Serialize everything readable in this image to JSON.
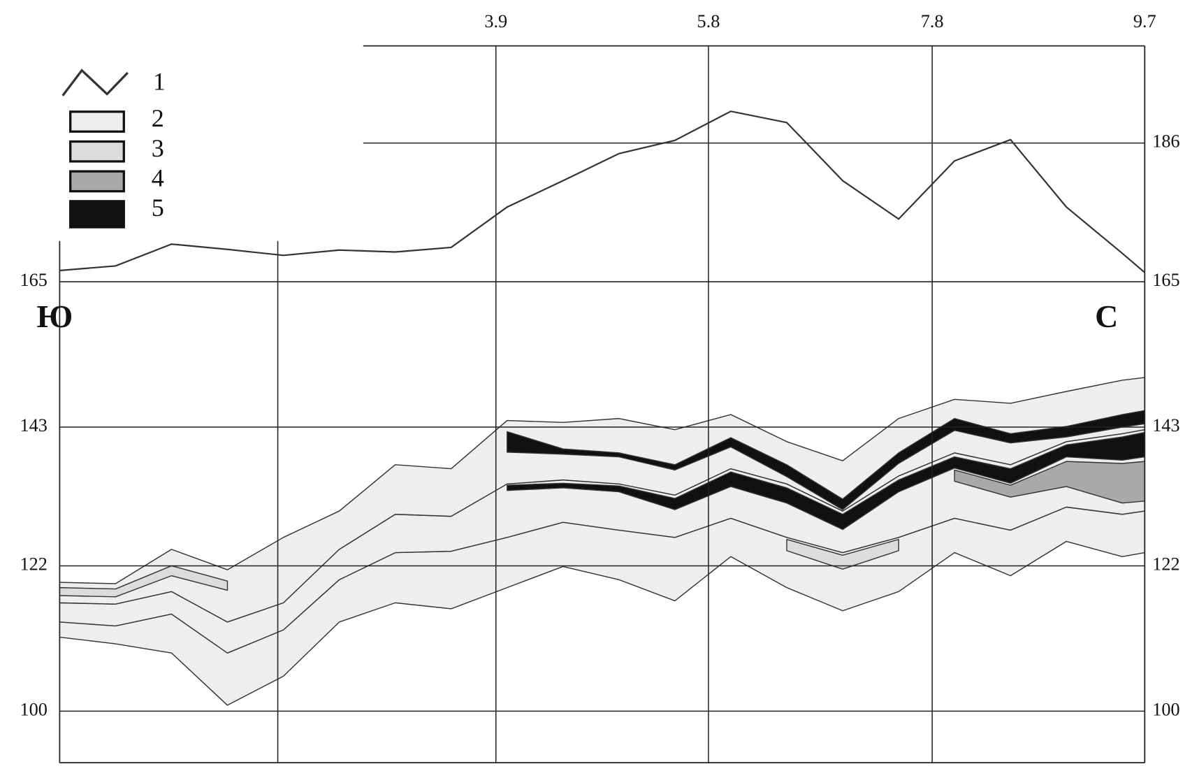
{
  "chart_data": {
    "type": "profile-section",
    "annotations": {
      "left": "Ю",
      "right": "С"
    },
    "x": [
      0,
      0.5,
      1,
      1.5,
      2,
      2.5,
      3,
      3.5,
      4,
      4.5,
      5,
      5.5,
      6,
      6.5,
      7,
      7.5,
      8,
      8.5,
      9,
      9.5,
      9.7
    ],
    "xlim": [
      0,
      9.7
    ],
    "xticks": [
      3.9,
      5.8,
      7.8,
      9.7
    ],
    "xgrid": [
      1.95,
      3.9,
      5.8,
      7.8,
      9.7
    ],
    "ylim": [
      92.2,
      200.7
    ],
    "yticks": [
      100,
      122,
      143,
      165,
      186
    ],
    "grid": true,
    "legend": "top-left",
    "series": [
      {
        "name": "1",
        "color": "#333333",
        "values": [
          166.7,
          167.4,
          170.7,
          169.9,
          169,
          169.8,
          169.5,
          170.2,
          176.3,
          180.3,
          184.4,
          186.4,
          190.8,
          189.1,
          180.3,
          174.5,
          183.3,
          186.5,
          176.3,
          169.3,
          166.4
        ]
      }
    ],
    "layers": [
      {
        "name": "2",
        "color": "#eeeeee"
      },
      {
        "name": "3",
        "color": "#dcdcdc"
      },
      {
        "name": "4",
        "color": "#a9a9a9"
      },
      {
        "name": "5",
        "color": "#111111"
      }
    ],
    "bands": [
      {
        "layer": "2",
        "high": [
          113.5,
          112.9,
          114.7,
          108.8,
          112.3,
          119.9,
          124,
          124.2,
          126.3,
          128.6,
          127.4,
          126.3,
          129.2,
          126.3,
          124,
          126.3,
          129.2,
          127.4,
          130.9,
          129.8,
          130.3
        ],
        "low": [
          111.2,
          110.2,
          108.8,
          100.9,
          105.3,
          113.5,
          116.4,
          115.5,
          118.7,
          121.9,
          119.9,
          116.7,
          123.4,
          118.7,
          115.2,
          118.1,
          124,
          120.5,
          125.7,
          123.4,
          124
        ]
      },
      {
        "layer": "2",
        "high": [
          116.4,
          116.2,
          118.1,
          113.5,
          116.4,
          124.5,
          129.8,
          129.5,
          134.4,
          135,
          134.4,
          132.7,
          136.7,
          134.4,
          130.3,
          135.6,
          139.1,
          137.3,
          140.8,
          142,
          142.6
        ],
        "low": [
          113.5,
          112.9,
          114.7,
          108.8,
          112.3,
          119.9,
          124,
          124.2,
          126.3,
          128.6,
          127.4,
          126.3,
          129.2,
          126.3,
          124,
          126.3,
          129.2,
          127.4,
          130.9,
          129.8,
          130.3
        ]
      },
      {
        "layer": "2",
        "high": [
          119.5,
          119.3,
          124.5,
          121.4,
          126.3,
          130.3,
          137.3,
          136.7,
          144,
          143.7,
          144.3,
          142.6,
          144.9,
          140.8,
          137.9,
          144.3,
          147.2,
          146.6,
          148.4,
          150.1,
          150.5
        ],
        "low": [
          116.4,
          116.2,
          118.1,
          113.5,
          116.4,
          124.5,
          129.8,
          129.5,
          134.4,
          135,
          134.4,
          132.7,
          136.7,
          134.4,
          130.3,
          135.6,
          139.1,
          137.3,
          140.8,
          142,
          142.6
        ]
      },
      {
        "layer": "3",
        "high": [
          118.7,
          118.5,
          122,
          119.7,
          null,
          null,
          null,
          null,
          null,
          null,
          null,
          null,
          null,
          null,
          null,
          null,
          null,
          null,
          null,
          null,
          null
        ],
        "low": [
          117.5,
          117.3,
          120.5,
          118.3,
          null,
          null,
          null,
          null,
          null,
          null,
          null,
          null,
          null,
          null,
          null,
          null,
          null,
          null,
          null,
          null,
          null
        ]
      },
      {
        "layer": "3",
        "high": [
          null,
          null,
          null,
          null,
          null,
          null,
          null,
          null,
          null,
          null,
          null,
          null,
          null,
          126,
          123.6,
          126,
          null,
          null,
          null,
          null,
          null
        ],
        "low": [
          null,
          null,
          null,
          null,
          null,
          null,
          null,
          null,
          null,
          null,
          null,
          null,
          null,
          124.3,
          121.5,
          124.3,
          null,
          null,
          null,
          null,
          null
        ]
      },
      {
        "layer": "4",
        "high": [
          null,
          null,
          null,
          null,
          null,
          null,
          null,
          null,
          null,
          null,
          null,
          null,
          null,
          null,
          null,
          null,
          136.5,
          134.2,
          137.8,
          137.5,
          137.8
        ],
        "low": [
          null,
          null,
          null,
          null,
          null,
          null,
          null,
          null,
          null,
          null,
          null,
          null,
          null,
          null,
          null,
          null,
          134.8,
          132.4,
          134,
          131.5,
          131.8
        ]
      },
      {
        "layer": "5",
        "high": [
          null,
          null,
          null,
          null,
          null,
          null,
          null,
          null,
          142.3,
          139.7,
          139.1,
          137.3,
          141.4,
          137.3,
          132.1,
          139.1,
          144.3,
          142,
          143.1,
          144.9,
          145.5
        ],
        "low": [
          null,
          null,
          null,
          null,
          null,
          null,
          null,
          null,
          139.2,
          138.9,
          138.5,
          136.5,
          140,
          135.5,
          130.5,
          137.5,
          142.5,
          140.6,
          141.5,
          143,
          143.5
        ]
      },
      {
        "layer": "5",
        "high": [
          null,
          null,
          null,
          null,
          null,
          null,
          null,
          null,
          134.2,
          134.5,
          134.1,
          132.2,
          136.2,
          133.8,
          129.8,
          135,
          138.5,
          136.7,
          140.3,
          141.5,
          142.2
        ],
        "low": [
          null,
          null,
          null,
          null,
          null,
          null,
          null,
          null,
          133.4,
          133.8,
          133.2,
          130.5,
          134,
          131.5,
          127.5,
          133.2,
          136.8,
          134.5,
          138.5,
          138,
          138.5
        ]
      }
    ]
  }
}
